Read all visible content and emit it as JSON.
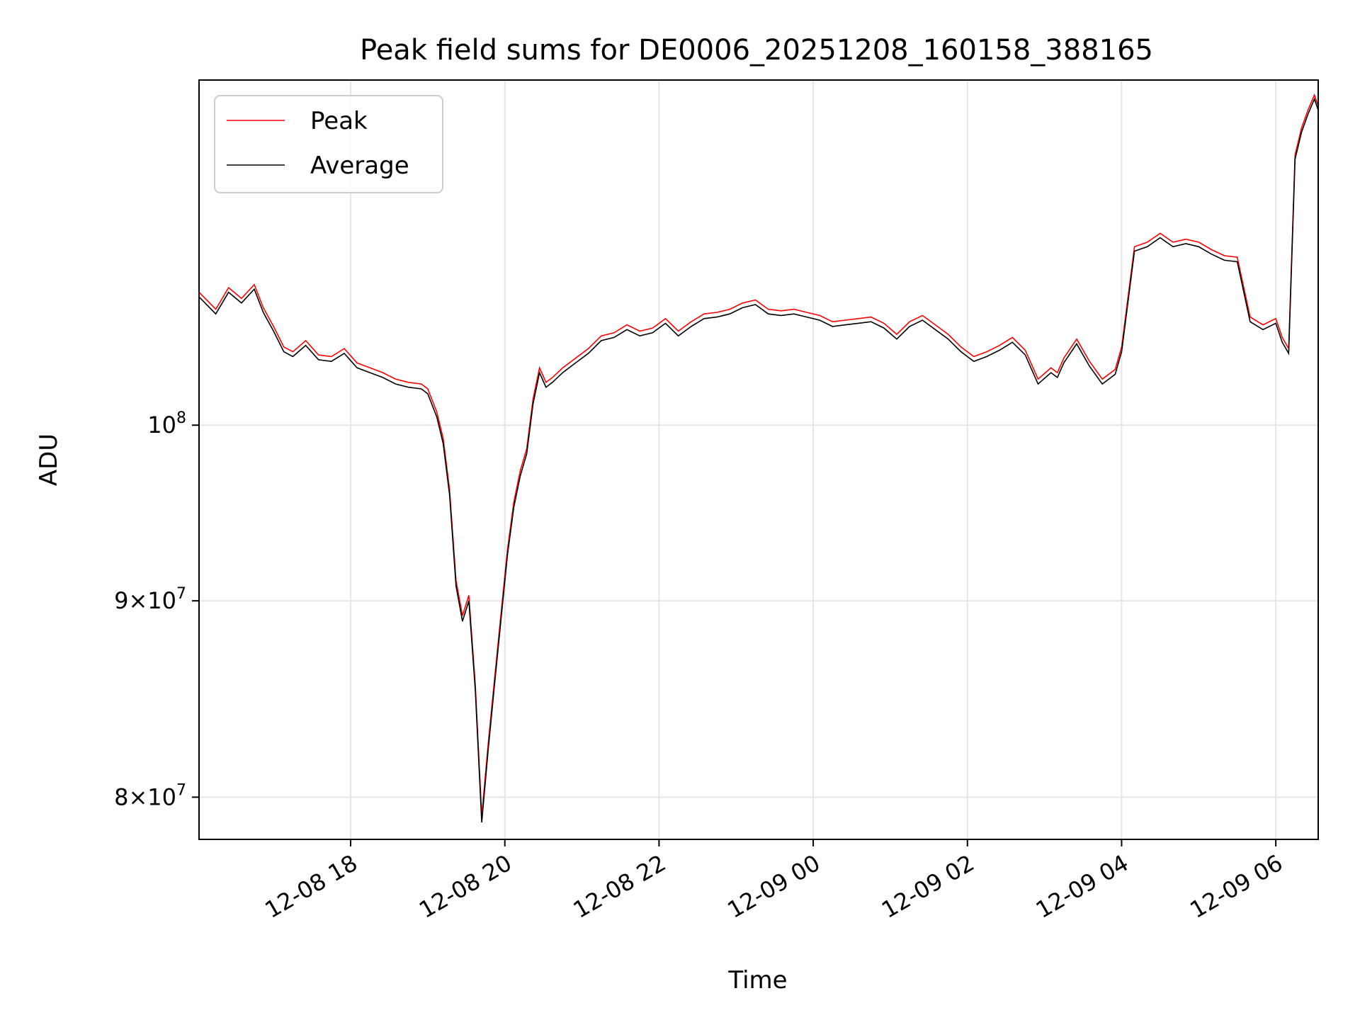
{
  "chart_data": {
    "type": "line",
    "title": "Peak field sums for DE0006_20251208_160158_388165",
    "xlabel": "Time",
    "ylabel": "ADU",
    "yscale": "log",
    "xlim": [
      "2025-12-08 16:02",
      "2025-12-09 06:33"
    ],
    "ylim": [
      78000000,
      123000000
    ],
    "grid": true,
    "legend": "upper left",
    "x_ticks": [
      {
        "t": "2025-12-08 18:00",
        "label": "12-08 18"
      },
      {
        "t": "2025-12-08 20:00",
        "label": "12-08 20"
      },
      {
        "t": "2025-12-08 22:00",
        "label": "12-08 22"
      },
      {
        "t": "2025-12-09 00:00",
        "label": "12-09 00"
      },
      {
        "t": "2025-12-09 02:00",
        "label": "12-09 02"
      },
      {
        "t": "2025-12-09 04:00",
        "label": "12-09 04"
      },
      {
        "t": "2025-12-09 06:00",
        "label": "12-09 06"
      }
    ],
    "y_ticks": [
      {
        "value": 80000000,
        "mant": "8",
        "exp": "7"
      },
      {
        "value": 90000000,
        "mant": "9",
        "exp": "7"
      },
      {
        "value": 100000000,
        "mant": "",
        "exp": "8"
      }
    ],
    "series": [
      {
        "name": "Peak",
        "color": "#ff0000",
        "x": [
          "2025-12-08 16:02",
          "2025-12-08 16:15",
          "2025-12-08 16:25",
          "2025-12-08 16:35",
          "2025-12-08 16:45",
          "2025-12-08 16:52",
          "2025-12-08 17:00",
          "2025-12-08 17:08",
          "2025-12-08 17:15",
          "2025-12-08 17:25",
          "2025-12-08 17:35",
          "2025-12-08 17:45",
          "2025-12-08 17:55",
          "2025-12-08 18:05",
          "2025-12-08 18:15",
          "2025-12-08 18:25",
          "2025-12-08 18:35",
          "2025-12-08 18:45",
          "2025-12-08 18:55",
          "2025-12-08 19:00",
          "2025-12-08 19:07",
          "2025-12-08 19:12",
          "2025-12-08 19:17",
          "2025-12-08 19:22",
          "2025-12-08 19:27",
          "2025-12-08 19:32",
          "2025-12-08 19:37",
          "2025-12-08 19:42",
          "2025-12-08 19:47",
          "2025-12-08 19:52",
          "2025-12-08 19:57",
          "2025-12-08 20:02",
          "2025-12-08 20:07",
          "2025-12-08 20:12",
          "2025-12-08 20:17",
          "2025-12-08 20:22",
          "2025-12-08 20:27",
          "2025-12-08 20:32",
          "2025-12-08 20:37",
          "2025-12-08 20:45",
          "2025-12-08 20:55",
          "2025-12-08 21:05",
          "2025-12-08 21:15",
          "2025-12-08 21:25",
          "2025-12-08 21:35",
          "2025-12-08 21:45",
          "2025-12-08 21:55",
          "2025-12-08 22:05",
          "2025-12-08 22:15",
          "2025-12-08 22:25",
          "2025-12-08 22:35",
          "2025-12-08 22:45",
          "2025-12-08 22:55",
          "2025-12-08 23:05",
          "2025-12-08 23:15",
          "2025-12-08 23:25",
          "2025-12-08 23:35",
          "2025-12-08 23:45",
          "2025-12-08 23:55",
          "2025-12-09 00:05",
          "2025-12-09 00:15",
          "2025-12-09 00:25",
          "2025-12-09 00:35",
          "2025-12-09 00:45",
          "2025-12-09 00:55",
          "2025-12-09 01:05",
          "2025-12-09 01:15",
          "2025-12-09 01:25",
          "2025-12-09 01:35",
          "2025-12-09 01:45",
          "2025-12-09 01:55",
          "2025-12-09 02:05",
          "2025-12-09 02:15",
          "2025-12-09 02:25",
          "2025-12-09 02:35",
          "2025-12-09 02:45",
          "2025-12-09 02:55",
          "2025-12-09 03:05",
          "2025-12-09 03:10",
          "2025-12-09 03:15",
          "2025-12-09 03:25",
          "2025-12-09 03:35",
          "2025-12-09 03:45",
          "2025-12-09 03:55",
          "2025-12-09 04:00",
          "2025-12-09 04:10",
          "2025-12-09 04:20",
          "2025-12-09 04:30",
          "2025-12-09 04:40",
          "2025-12-09 04:50",
          "2025-12-09 05:00",
          "2025-12-09 05:10",
          "2025-12-09 05:20",
          "2025-12-09 05:30",
          "2025-12-09 05:40",
          "2025-12-09 05:50",
          "2025-12-09 06:00",
          "2025-12-09 06:05",
          "2025-12-09 06:10",
          "2025-12-09 06:15",
          "2025-12-09 06:20",
          "2025-12-09 06:25",
          "2025-12-09 06:30",
          "2025-12-09 06:33"
        ],
        "values": [
          108300000,
          107200000,
          108600000,
          107900000,
          108800000,
          107300000,
          106100000,
          104800000,
          104500000,
          105200000,
          104300000,
          104200000,
          104700000,
          103800000,
          103500000,
          103200000,
          102800000,
          102600000,
          102500000,
          102200000,
          100800000,
          99200000,
          96200000,
          91100000,
          89200000,
          90300000,
          85600000,
          79100000,
          82600000,
          85900000,
          89300000,
          92800000,
          95500000,
          97300000,
          98600000,
          101600000,
          103500000,
          102600000,
          102900000,
          103500000,
          104100000,
          104700000,
          105500000,
          105700000,
          106200000,
          105800000,
          106000000,
          106600000,
          105800000,
          106400000,
          106900000,
          107000000,
          107200000,
          107600000,
          107800000,
          107200000,
          107100000,
          107200000,
          107000000,
          106800000,
          106400000,
          106500000,
          106600000,
          106700000,
          106300000,
          105600000,
          106400000,
          106800000,
          106200000,
          105600000,
          104800000,
          104200000,
          104500000,
          104900000,
          105400000,
          104600000,
          102800000,
          103500000,
          103200000,
          104100000,
          105300000,
          103900000,
          102800000,
          103400000,
          104800000,
          111300000,
          111600000,
          112200000,
          111600000,
          111800000,
          111600000,
          111100000,
          110700000,
          110600000,
          106700000,
          106200000,
          106600000,
          105400000,
          104700000,
          117600000,
          119500000,
          120800000,
          121900000,
          121100000
        ]
      },
      {
        "name": "Average",
        "color": "#000000",
        "x": [
          "2025-12-08 16:02",
          "2025-12-08 16:15",
          "2025-12-08 16:25",
          "2025-12-08 16:35",
          "2025-12-08 16:45",
          "2025-12-08 16:52",
          "2025-12-08 17:00",
          "2025-12-08 17:08",
          "2025-12-08 17:15",
          "2025-12-08 17:25",
          "2025-12-08 17:35",
          "2025-12-08 17:45",
          "2025-12-08 17:55",
          "2025-12-08 18:05",
          "2025-12-08 18:15",
          "2025-12-08 18:25",
          "2025-12-08 18:35",
          "2025-12-08 18:45",
          "2025-12-08 18:55",
          "2025-12-08 19:00",
          "2025-12-08 19:07",
          "2025-12-08 19:12",
          "2025-12-08 19:17",
          "2025-12-08 19:22",
          "2025-12-08 19:27",
          "2025-12-08 19:32",
          "2025-12-08 19:37",
          "2025-12-08 19:42",
          "2025-12-08 19:47",
          "2025-12-08 19:52",
          "2025-12-08 19:57",
          "2025-12-08 20:02",
          "2025-12-08 20:07",
          "2025-12-08 20:12",
          "2025-12-08 20:17",
          "2025-12-08 20:22",
          "2025-12-08 20:27",
          "2025-12-08 20:32",
          "2025-12-08 20:37",
          "2025-12-08 20:45",
          "2025-12-08 20:55",
          "2025-12-08 21:05",
          "2025-12-08 21:15",
          "2025-12-08 21:25",
          "2025-12-08 21:35",
          "2025-12-08 21:45",
          "2025-12-08 21:55",
          "2025-12-08 22:05",
          "2025-12-08 22:15",
          "2025-12-08 22:25",
          "2025-12-08 22:35",
          "2025-12-08 22:45",
          "2025-12-08 22:55",
          "2025-12-08 23:05",
          "2025-12-08 23:15",
          "2025-12-08 23:25",
          "2025-12-08 23:35",
          "2025-12-08 23:45",
          "2025-12-08 23:55",
          "2025-12-09 00:05",
          "2025-12-09 00:15",
          "2025-12-09 00:25",
          "2025-12-09 00:35",
          "2025-12-09 00:45",
          "2025-12-09 00:55",
          "2025-12-09 01:05",
          "2025-12-09 01:15",
          "2025-12-09 01:25",
          "2025-12-09 01:35",
          "2025-12-09 01:45",
          "2025-12-09 01:55",
          "2025-12-09 02:05",
          "2025-12-09 02:15",
          "2025-12-09 02:25",
          "2025-12-09 02:35",
          "2025-12-09 02:45",
          "2025-12-09 02:55",
          "2025-12-09 03:05",
          "2025-12-09 03:10",
          "2025-12-09 03:15",
          "2025-12-09 03:25",
          "2025-12-09 03:35",
          "2025-12-09 03:45",
          "2025-12-09 03:55",
          "2025-12-09 04:00",
          "2025-12-09 04:10",
          "2025-12-09 04:20",
          "2025-12-09 04:30",
          "2025-12-09 04:40",
          "2025-12-09 04:50",
          "2025-12-09 05:00",
          "2025-12-09 05:10",
          "2025-12-09 05:20",
          "2025-12-09 05:30",
          "2025-12-09 05:40",
          "2025-12-09 05:50",
          "2025-12-09 06:00",
          "2025-12-09 06:05",
          "2025-12-09 06:10",
          "2025-12-09 06:15",
          "2025-12-09 06:20",
          "2025-12-09 06:25",
          "2025-12-09 06:30",
          "2025-12-09 06:33"
        ],
        "values": [
          108000000,
          106900000,
          108300000,
          107600000,
          108500000,
          107000000,
          105800000,
          104500000,
          104200000,
          104900000,
          104000000,
          103900000,
          104400000,
          103500000,
          103200000,
          102900000,
          102500000,
          102300000,
          102200000,
          101900000,
          100500000,
          98900000,
          95900000,
          90800000,
          88900000,
          90000000,
          85300000,
          78800000,
          82300000,
          85600000,
          89000000,
          92500000,
          95200000,
          97000000,
          98300000,
          101300000,
          103200000,
          102300000,
          102600000,
          103200000,
          103800000,
          104400000,
          105200000,
          105400000,
          105900000,
          105500000,
          105700000,
          106300000,
          105500000,
          106100000,
          106600000,
          106700000,
          106900000,
          107300000,
          107500000,
          106900000,
          106800000,
          106900000,
          106700000,
          106500000,
          106100000,
          106200000,
          106300000,
          106400000,
          106000000,
          105300000,
          106100000,
          106500000,
          105900000,
          105300000,
          104500000,
          103900000,
          104200000,
          104600000,
          105100000,
          104300000,
          102500000,
          103200000,
          102900000,
          103800000,
          105000000,
          103600000,
          102500000,
          103100000,
          104500000,
          111000000,
          111300000,
          111900000,
          111300000,
          111500000,
          111300000,
          110800000,
          110400000,
          110300000,
          106400000,
          105900000,
          106300000,
          105100000,
          104400000,
          117300000,
          119200000,
          120500000,
          121600000,
          120800000
        ]
      }
    ]
  }
}
